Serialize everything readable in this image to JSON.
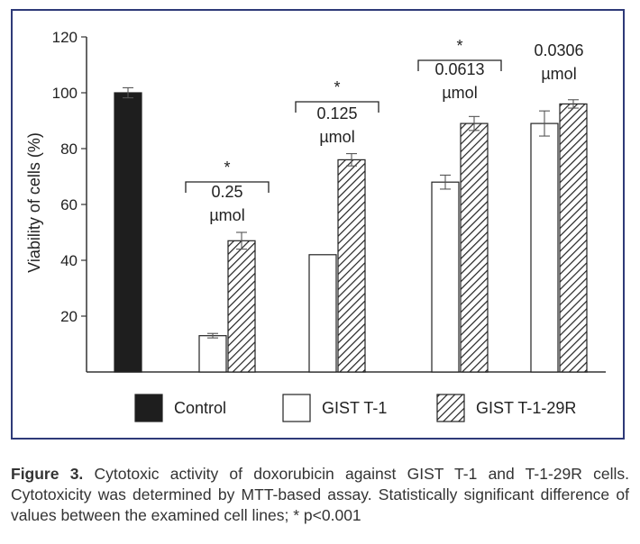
{
  "chart_data": {
    "type": "bar",
    "ylabel": "Viability of cells (%)",
    "xlabel": "",
    "ylim": [
      0,
      120
    ],
    "yticks": [
      20,
      40,
      60,
      80,
      100,
      120
    ],
    "grid": false,
    "legend_position": "bottom",
    "legend": [
      {
        "name": "Control",
        "fill": "solid-black"
      },
      {
        "name": "GIST T-1",
        "fill": "white"
      },
      {
        "name": "GIST T-1-29R",
        "fill": "diagonal-hatch"
      }
    ],
    "groups": [
      {
        "label": "",
        "bars": [
          {
            "series": "Control",
            "value": 100,
            "error": 1.8
          }
        ]
      },
      {
        "label": "0.25 µmol",
        "label_lines": [
          "0.25",
          "µmol"
        ],
        "significance": "*",
        "bars": [
          {
            "series": "GIST T-1",
            "value": 13,
            "error": 0.8
          },
          {
            "series": "GIST T-1-29R",
            "value": 47,
            "error": 3
          }
        ]
      },
      {
        "label": "0.125 µmol",
        "label_lines": [
          "0.125",
          "µmol"
        ],
        "significance": "*",
        "bars": [
          {
            "series": "GIST T-1",
            "value": 42,
            "error": 0
          },
          {
            "series": "GIST T-1-29R",
            "value": 76,
            "error": 2.2
          }
        ]
      },
      {
        "label": "0.0613 µmol",
        "label_lines": [
          "0.0613",
          "µmol"
        ],
        "significance": "*",
        "bars": [
          {
            "series": "GIST T-1",
            "value": 68,
            "error": 2.5
          },
          {
            "series": "GIST T-1-29R",
            "value": 89,
            "error": 2.5
          }
        ]
      },
      {
        "label": "0.0306 µmol",
        "label_lines": [
          "0.0306",
          "µmol"
        ],
        "significance": "",
        "bars": [
          {
            "series": "GIST T-1",
            "value": 89,
            "error": 4.5
          },
          {
            "series": "GIST T-1-29R",
            "value": 96,
            "error": 1.5
          }
        ]
      }
    ]
  },
  "caption": {
    "label": "Figure 3.",
    "text": " Cytotoxic activity of doxorubicin against GIST T-1 and T-1-29R cells. Cytotoxicity was determined by MTT-based assay. Statistically significant difference of values between the examined cell lines; * p<0.001"
  },
  "colors": {
    "frame": "#2e3a78",
    "bar_dark": "#1e1e1e",
    "axis": "#333333"
  }
}
